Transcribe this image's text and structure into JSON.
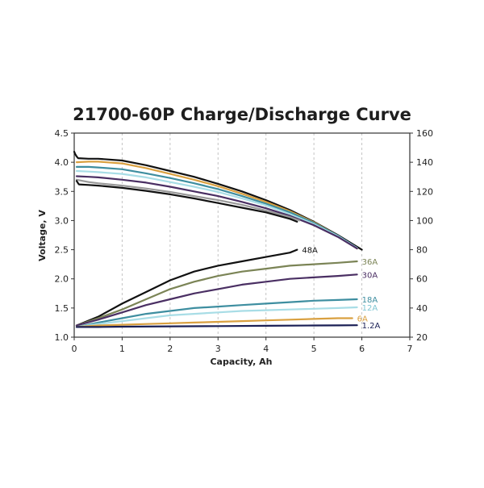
{
  "chart_data": {
    "type": "line",
    "title": "21700-60P Charge/Discharge Curve",
    "xlabel": "Capacity, Ah",
    "ylabel": "Voltage, V",
    "xlim": [
      0,
      7
    ],
    "ylim": [
      1.0,
      4.5
    ],
    "y2lim": [
      20,
      160
    ],
    "x_ticks": [
      "0",
      "1",
      "2",
      "3",
      "4",
      "5",
      "6",
      "7"
    ],
    "y_ticks": [
      "1.0",
      "1.5",
      "2.0",
      "2.5",
      "3.0",
      "3.5",
      "4.0",
      "4.5"
    ],
    "y2_ticks": [
      "20",
      "40",
      "60",
      "80",
      "100",
      "120",
      "140",
      "160"
    ],
    "grid": "vertical",
    "series": [
      {
        "name": "48A",
        "axis": "right",
        "color": "#111111",
        "x": [
          0.05,
          0.5,
          1.0,
          1.5,
          2.0,
          2.5,
          3.0,
          3.5,
          4.0,
          4.5,
          4.65
        ],
        "y": [
          28,
          34,
          43,
          51,
          59,
          65,
          69,
          72,
          75,
          78,
          80
        ]
      },
      {
        "name": "36A",
        "axis": "right",
        "color": "#7b8456",
        "x": [
          0.05,
          0.5,
          1.0,
          1.5,
          2.0,
          2.5,
          3.0,
          3.5,
          4.0,
          4.5,
          5.0,
          5.5,
          5.9
        ],
        "y": [
          28,
          33,
          39,
          46,
          53,
          58,
          62,
          65,
          67,
          69,
          70,
          71,
          72
        ]
      },
      {
        "name": "30A",
        "axis": "right",
        "color": "#4a2f63",
        "x": [
          0.05,
          0.5,
          1.0,
          1.5,
          2.0,
          2.5,
          3.0,
          3.5,
          4.0,
          4.5,
          5.0,
          5.5,
          5.9
        ],
        "y": [
          28,
          32,
          37,
          42,
          46,
          50,
          53,
          56,
          58,
          60,
          61,
          62,
          63
        ]
      },
      {
        "name": "18A",
        "axis": "right",
        "color": "#3e8ea0",
        "x": [
          0.05,
          0.5,
          1.0,
          1.5,
          2.0,
          2.5,
          3.0,
          3.5,
          4.0,
          4.5,
          5.0,
          5.5,
          5.9
        ],
        "y": [
          27,
          30,
          33,
          36,
          38,
          40,
          41,
          42,
          43,
          44,
          45,
          45.5,
          46
        ]
      },
      {
        "name": "12A",
        "axis": "right",
        "color": "#a8dde6",
        "x": [
          0.05,
          0.5,
          1.0,
          1.5,
          2.0,
          2.5,
          3.0,
          3.5,
          4.0,
          4.5,
          5.0,
          5.5,
          5.9
        ],
        "y": [
          27,
          29,
          31,
          33,
          35,
          36,
          37,
          38,
          38.5,
          39,
          39.5,
          40,
          40.5
        ]
      },
      {
        "name": "6A",
        "axis": "right",
        "color": "#d9a040",
        "x": [
          0.05,
          0.5,
          1.0,
          1.5,
          2.0,
          2.5,
          3.0,
          3.5,
          4.0,
          4.5,
          5.0,
          5.5,
          5.8
        ],
        "y": [
          27,
          28,
          28.5,
          29,
          29.5,
          30,
          30.5,
          31,
          31.5,
          32,
          32.5,
          33,
          33
        ]
      },
      {
        "name": "1.2A",
        "axis": "right",
        "color": "#1a1f55",
        "x": [
          0.05,
          0.5,
          1.0,
          2.0,
          3.0,
          4.0,
          5.0,
          5.5,
          5.9
        ],
        "y": [
          27,
          27,
          27.2,
          27.4,
          27.6,
          27.8,
          28,
          28.1,
          28.2
        ]
      },
      {
        "name": "",
        "axis": "left",
        "color": "#111111",
        "x": [
          0,
          0.02,
          0.05,
          0.08,
          0.3,
          0.5,
          1.0,
          1.5,
          2.0,
          2.5,
          3.0,
          3.5,
          4.0,
          4.5,
          5.0,
          5.5,
          5.8,
          6.0
        ],
        "y": [
          4.18,
          4.14,
          4.1,
          4.07,
          4.06,
          4.06,
          4.03,
          3.95,
          3.85,
          3.75,
          3.63,
          3.5,
          3.35,
          3.18,
          2.98,
          2.75,
          2.6,
          2.5
        ]
      },
      {
        "name": "",
        "axis": "left",
        "color": "#d9a040",
        "x": [
          0.05,
          0.3,
          0.5,
          1.0,
          1.5,
          2.0,
          2.5,
          3.0,
          3.5,
          4.0,
          4.5,
          5.0,
          5.5,
          5.9
        ],
        "y": [
          4.0,
          4.01,
          4.01,
          3.98,
          3.9,
          3.8,
          3.7,
          3.59,
          3.46,
          3.32,
          3.16,
          2.97,
          2.74,
          2.52
        ]
      },
      {
        "name": "",
        "axis": "left",
        "color": "#3e8ea0",
        "x": [
          0.05,
          0.3,
          0.5,
          1.0,
          1.5,
          2.0,
          2.5,
          3.0,
          3.5,
          4.0,
          4.5,
          5.0,
          5.5,
          5.9
        ],
        "y": [
          3.92,
          3.92,
          3.91,
          3.88,
          3.81,
          3.73,
          3.64,
          3.54,
          3.42,
          3.29,
          3.14,
          2.96,
          2.74,
          2.53
        ]
      },
      {
        "name": "",
        "axis": "left",
        "color": "#a8dde6",
        "x": [
          0.05,
          0.3,
          0.5,
          1.0,
          1.5,
          2.0,
          2.5,
          3.0,
          3.5,
          4.0,
          4.5,
          5.0,
          5.5,
          5.9
        ],
        "y": [
          3.85,
          3.84,
          3.83,
          3.8,
          3.74,
          3.66,
          3.58,
          3.49,
          3.38,
          3.26,
          3.11,
          2.94,
          2.73,
          2.53
        ]
      },
      {
        "name": "",
        "axis": "left",
        "color": "#4a2f63",
        "x": [
          0.05,
          0.3,
          0.5,
          1.0,
          1.5,
          2.0,
          2.5,
          3.0,
          3.5,
          4.0,
          4.5,
          5.0,
          5.5,
          5.9
        ],
        "y": [
          3.76,
          3.75,
          3.74,
          3.7,
          3.65,
          3.58,
          3.5,
          3.42,
          3.32,
          3.21,
          3.08,
          2.92,
          2.72,
          2.52
        ]
      },
      {
        "name": "",
        "axis": "left",
        "color": "#999999",
        "x": [
          0.05,
          0.3,
          0.5,
          1.0,
          1.5,
          2.0,
          2.5,
          3.0,
          3.5,
          4.0,
          4.5,
          4.7
        ],
        "y": [
          3.7,
          3.66,
          3.64,
          3.6,
          3.55,
          3.49,
          3.42,
          3.35,
          3.27,
          3.17,
          3.06,
          3.0
        ]
      },
      {
        "name": "",
        "axis": "left",
        "color": "#111111",
        "x": [
          0.05,
          0.08,
          0.1,
          0.3,
          0.5,
          1.0,
          1.5,
          2.0,
          2.5,
          3.0,
          3.5,
          4.0,
          4.5,
          4.65
        ],
        "y": [
          3.68,
          3.64,
          3.62,
          3.61,
          3.6,
          3.56,
          3.51,
          3.45,
          3.38,
          3.3,
          3.22,
          3.14,
          3.03,
          2.98
        ]
      }
    ]
  }
}
